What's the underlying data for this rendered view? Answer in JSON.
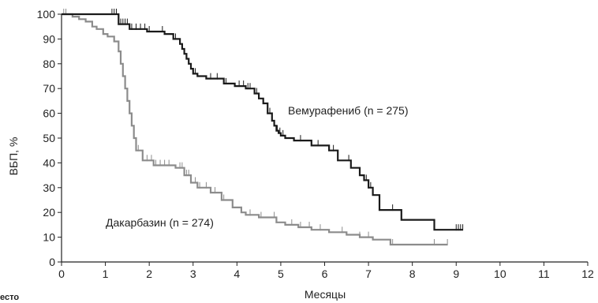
{
  "chart_data": {
    "type": "line",
    "step": true,
    "xlabel": "Месяцы",
    "ylabel": "ВБП, %",
    "xlim": [
      0,
      12
    ],
    "ylim": [
      0,
      100
    ],
    "xticks": [
      0,
      1,
      2,
      3,
      4,
      5,
      6,
      7,
      8,
      9,
      10,
      11,
      12
    ],
    "yticks": [
      0,
      10,
      20,
      30,
      40,
      50,
      60,
      70,
      80,
      90,
      100
    ],
    "grid": false,
    "series": [
      {
        "name": "Вемурафениб (n = 275)",
        "color": "#1a1a1a",
        "x": [
          0,
          1.3,
          1.55,
          1.95,
          2.35,
          2.55,
          2.7,
          2.75,
          2.8,
          2.85,
          2.9,
          2.95,
          3.0,
          3.1,
          3.3,
          3.7,
          3.95,
          4.2,
          4.4,
          4.5,
          4.6,
          4.7,
          4.8,
          4.85,
          4.9,
          4.95,
          5.0,
          5.1,
          5.3,
          5.7,
          6.1,
          6.3,
          6.6,
          6.8,
          6.9,
          7.0,
          7.1,
          7.25,
          7.75,
          8.5,
          9.15
        ],
        "y": [
          100,
          96,
          94,
          93,
          92,
          90,
          88,
          86,
          84,
          82,
          80,
          78,
          76,
          75,
          74,
          72,
          71,
          70,
          68,
          66,
          64,
          60,
          57,
          55,
          53,
          52,
          51,
          50,
          49,
          47,
          45,
          41,
          38,
          35,
          33,
          30,
          27,
          21,
          17,
          13,
          13
        ],
        "censor_x": [
          1.15,
          1.2,
          1.25,
          1.3,
          1.35,
          1.4,
          1.45,
          1.5,
          1.6,
          1.7,
          1.8,
          1.9,
          2.0,
          2.3,
          2.6,
          2.7,
          2.75,
          2.8,
          2.85,
          2.9,
          3.05,
          3.4,
          3.55,
          3.75,
          4.05,
          4.15,
          4.25,
          4.3,
          4.45,
          4.6,
          4.75,
          4.85,
          4.92,
          4.98,
          5.05,
          5.45,
          5.85,
          6.2,
          6.55,
          6.95,
          7.05,
          7.55,
          9.0,
          9.05,
          9.1,
          9.15
        ]
      },
      {
        "name": "Дакарбазин (n = 274)",
        "color": "#8c8c8c",
        "x": [
          0,
          0.25,
          0.4,
          0.55,
          0.7,
          0.8,
          0.95,
          1.05,
          1.2,
          1.3,
          1.35,
          1.4,
          1.45,
          1.5,
          1.55,
          1.6,
          1.65,
          1.7,
          1.85,
          2.1,
          2.6,
          2.8,
          2.95,
          3.1,
          3.4,
          3.65,
          3.9,
          4.1,
          4.2,
          4.5,
          4.8,
          4.9,
          5.1,
          5.4,
          5.7,
          6.1,
          6.5,
          6.8,
          7.1,
          7.3,
          7.5,
          8.4,
          8.8
        ],
        "y": [
          100,
          99,
          98,
          97,
          95,
          94,
          92,
          91,
          89,
          85,
          80,
          75,
          70,
          65,
          60,
          55,
          50,
          45,
          41,
          39,
          38,
          35,
          32,
          30,
          28,
          25,
          22,
          20,
          19,
          18,
          18,
          16,
          15,
          14,
          13,
          12,
          11,
          10,
          9,
          9,
          7,
          7,
          7
        ],
        "censor_x": [
          0.05,
          0.1,
          1.75,
          1.95,
          2.05,
          2.15,
          2.25,
          2.35,
          2.45,
          2.7,
          2.75,
          2.85,
          2.9,
          3.05,
          3.15,
          3.3,
          3.5,
          3.7,
          4.3,
          4.55,
          4.85,
          5.25,
          5.45,
          5.65,
          5.9,
          6.4,
          6.8,
          7.0,
          7.55,
          8.5,
          8.8
        ]
      }
    ]
  },
  "footer_fragment": "есто"
}
